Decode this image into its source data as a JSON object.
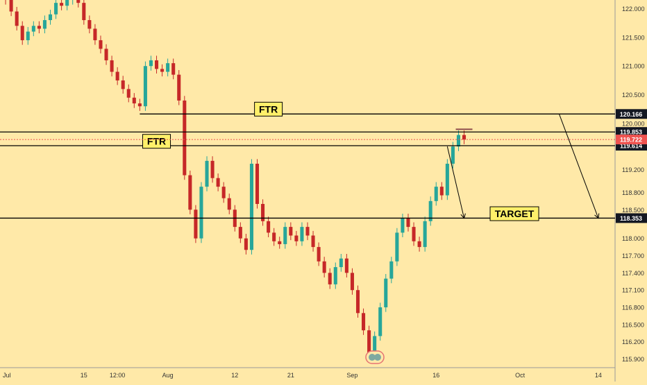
{
  "chart_data": {
    "type": "line",
    "title": "",
    "xlabel": "",
    "ylabel": "",
    "ylim": [
      115.75,
      122.15
    ],
    "grid": false,
    "colors": {
      "background": "#ffe9a8",
      "candle_up": "#26a69a",
      "candle_down": "#c62828",
      "line": "#000000",
      "price_marker": "#ef5350",
      "label_box": "#fff06a"
    },
    "y_ticks": [
      "122.000",
      "121.500",
      "121.000",
      "120.500",
      "120.000",
      "119.200",
      "118.800",
      "118.500",
      "118.000",
      "117.700",
      "117.400",
      "117.100",
      "116.800",
      "116.500",
      "116.200",
      "115.900"
    ],
    "y_tick_values": [
      122.0,
      121.5,
      121.0,
      120.5,
      120.0,
      119.2,
      118.8,
      118.5,
      118.0,
      117.7,
      117.4,
      117.1,
      116.8,
      116.5,
      116.2,
      115.9
    ],
    "x_ticks": [
      "Jul",
      "15",
      "12:00",
      "Aug",
      "12",
      "21",
      "Sep",
      "16",
      "Oct",
      "14"
    ],
    "x_tick_values": [
      0,
      15,
      21,
      30,
      42,
      52,
      63,
      78,
      93,
      107
    ],
    "levels": [
      {
        "value": 120.166,
        "label": "120.166",
        "x_start": 25,
        "x_end": 130
      },
      {
        "value": 119.853,
        "label": "119.853",
        "x_start": 0,
        "x_end": 130
      },
      {
        "value": 119.614,
        "label": "119.614",
        "x_start": 0,
        "x_end": 130
      },
      {
        "value": 118.353,
        "label": "118.353",
        "x_start": 0,
        "x_end": 130
      }
    ],
    "current_price": {
      "value": 119.722,
      "label": "119.722"
    },
    "annotations": [
      {
        "text": "FTR",
        "x": 48,
        "y": 120.25
      },
      {
        "text": "FTR",
        "x": 28,
        "y": 119.69
      },
      {
        "text": "TARGET",
        "x": 92,
        "y": 118.43
      }
    ],
    "arrows": [
      {
        "from": [
          100,
          120.166
        ],
        "to": [
          107,
          118.353
        ]
      },
      {
        "from": [
          80,
          119.6
        ],
        "to": [
          83,
          118.353
        ]
      }
    ],
    "candles": [
      [
        0,
        122.25
      ],
      [
        1,
        122.15
      ],
      [
        2,
        121.95
      ],
      [
        3,
        121.7
      ],
      [
        4,
        121.45
      ],
      [
        5,
        121.6
      ],
      [
        6,
        121.7
      ],
      [
        7,
        121.65
      ],
      [
        8,
        121.8
      ],
      [
        9,
        121.9
      ],
      [
        10,
        122.1
      ],
      [
        11,
        122.05
      ],
      [
        12,
        122.15
      ],
      [
        13,
        122.25
      ],
      [
        14,
        122.1
      ],
      [
        15,
        121.8
      ],
      [
        16,
        121.65
      ],
      [
        17,
        121.45
      ],
      [
        18,
        121.3
      ],
      [
        19,
        121.1
      ],
      [
        20,
        120.9
      ],
      [
        21,
        120.75
      ],
      [
        22,
        120.6
      ],
      [
        23,
        120.45
      ],
      [
        24,
        120.35
      ],
      [
        25,
        120.3
      ],
      [
        26,
        121.0
      ],
      [
        27,
        121.1
      ],
      [
        28,
        120.95
      ],
      [
        29,
        120.9
      ],
      [
        30,
        121.05
      ],
      [
        31,
        120.85
      ],
      [
        32,
        120.4
      ],
      [
        33,
        119.1
      ],
      [
        34,
        118.5
      ],
      [
        35,
        118.0
      ],
      [
        36,
        118.9
      ],
      [
        37,
        119.35
      ],
      [
        38,
        119.05
      ],
      [
        39,
        118.9
      ],
      [
        40,
        118.7
      ],
      [
        41,
        118.5
      ],
      [
        42,
        118.2
      ],
      [
        43,
        118.0
      ],
      [
        44,
        117.8
      ],
      [
        45,
        119.3
      ],
      [
        46,
        118.6
      ],
      [
        47,
        118.3
      ],
      [
        48,
        118.1
      ],
      [
        49,
        117.95
      ],
      [
        50,
        117.9
      ],
      [
        51,
        118.2
      ],
      [
        52,
        118.05
      ],
      [
        53,
        117.95
      ],
      [
        54,
        118.2
      ],
      [
        55,
        118.05
      ],
      [
        56,
        117.85
      ],
      [
        57,
        117.6
      ],
      [
        58,
        117.4
      ],
      [
        59,
        117.2
      ],
      [
        60,
        117.5
      ],
      [
        61,
        117.65
      ],
      [
        62,
        117.4
      ],
      [
        63,
        117.1
      ],
      [
        64,
        116.7
      ],
      [
        65,
        116.4
      ],
      [
        66,
        116.0
      ],
      [
        67,
        116.3
      ],
      [
        68,
        116.8
      ],
      [
        69,
        117.3
      ],
      [
        70,
        117.6
      ],
      [
        71,
        118.1
      ],
      [
        72,
        118.35
      ],
      [
        73,
        118.2
      ],
      [
        74,
        117.95
      ],
      [
        75,
        117.85
      ],
      [
        76,
        118.3
      ],
      [
        77,
        118.65
      ],
      [
        78,
        118.9
      ],
      [
        79,
        118.75
      ],
      [
        80,
        119.3
      ],
      [
        81,
        119.6
      ],
      [
        82,
        119.8
      ],
      [
        83,
        119.72
      ]
    ]
  }
}
